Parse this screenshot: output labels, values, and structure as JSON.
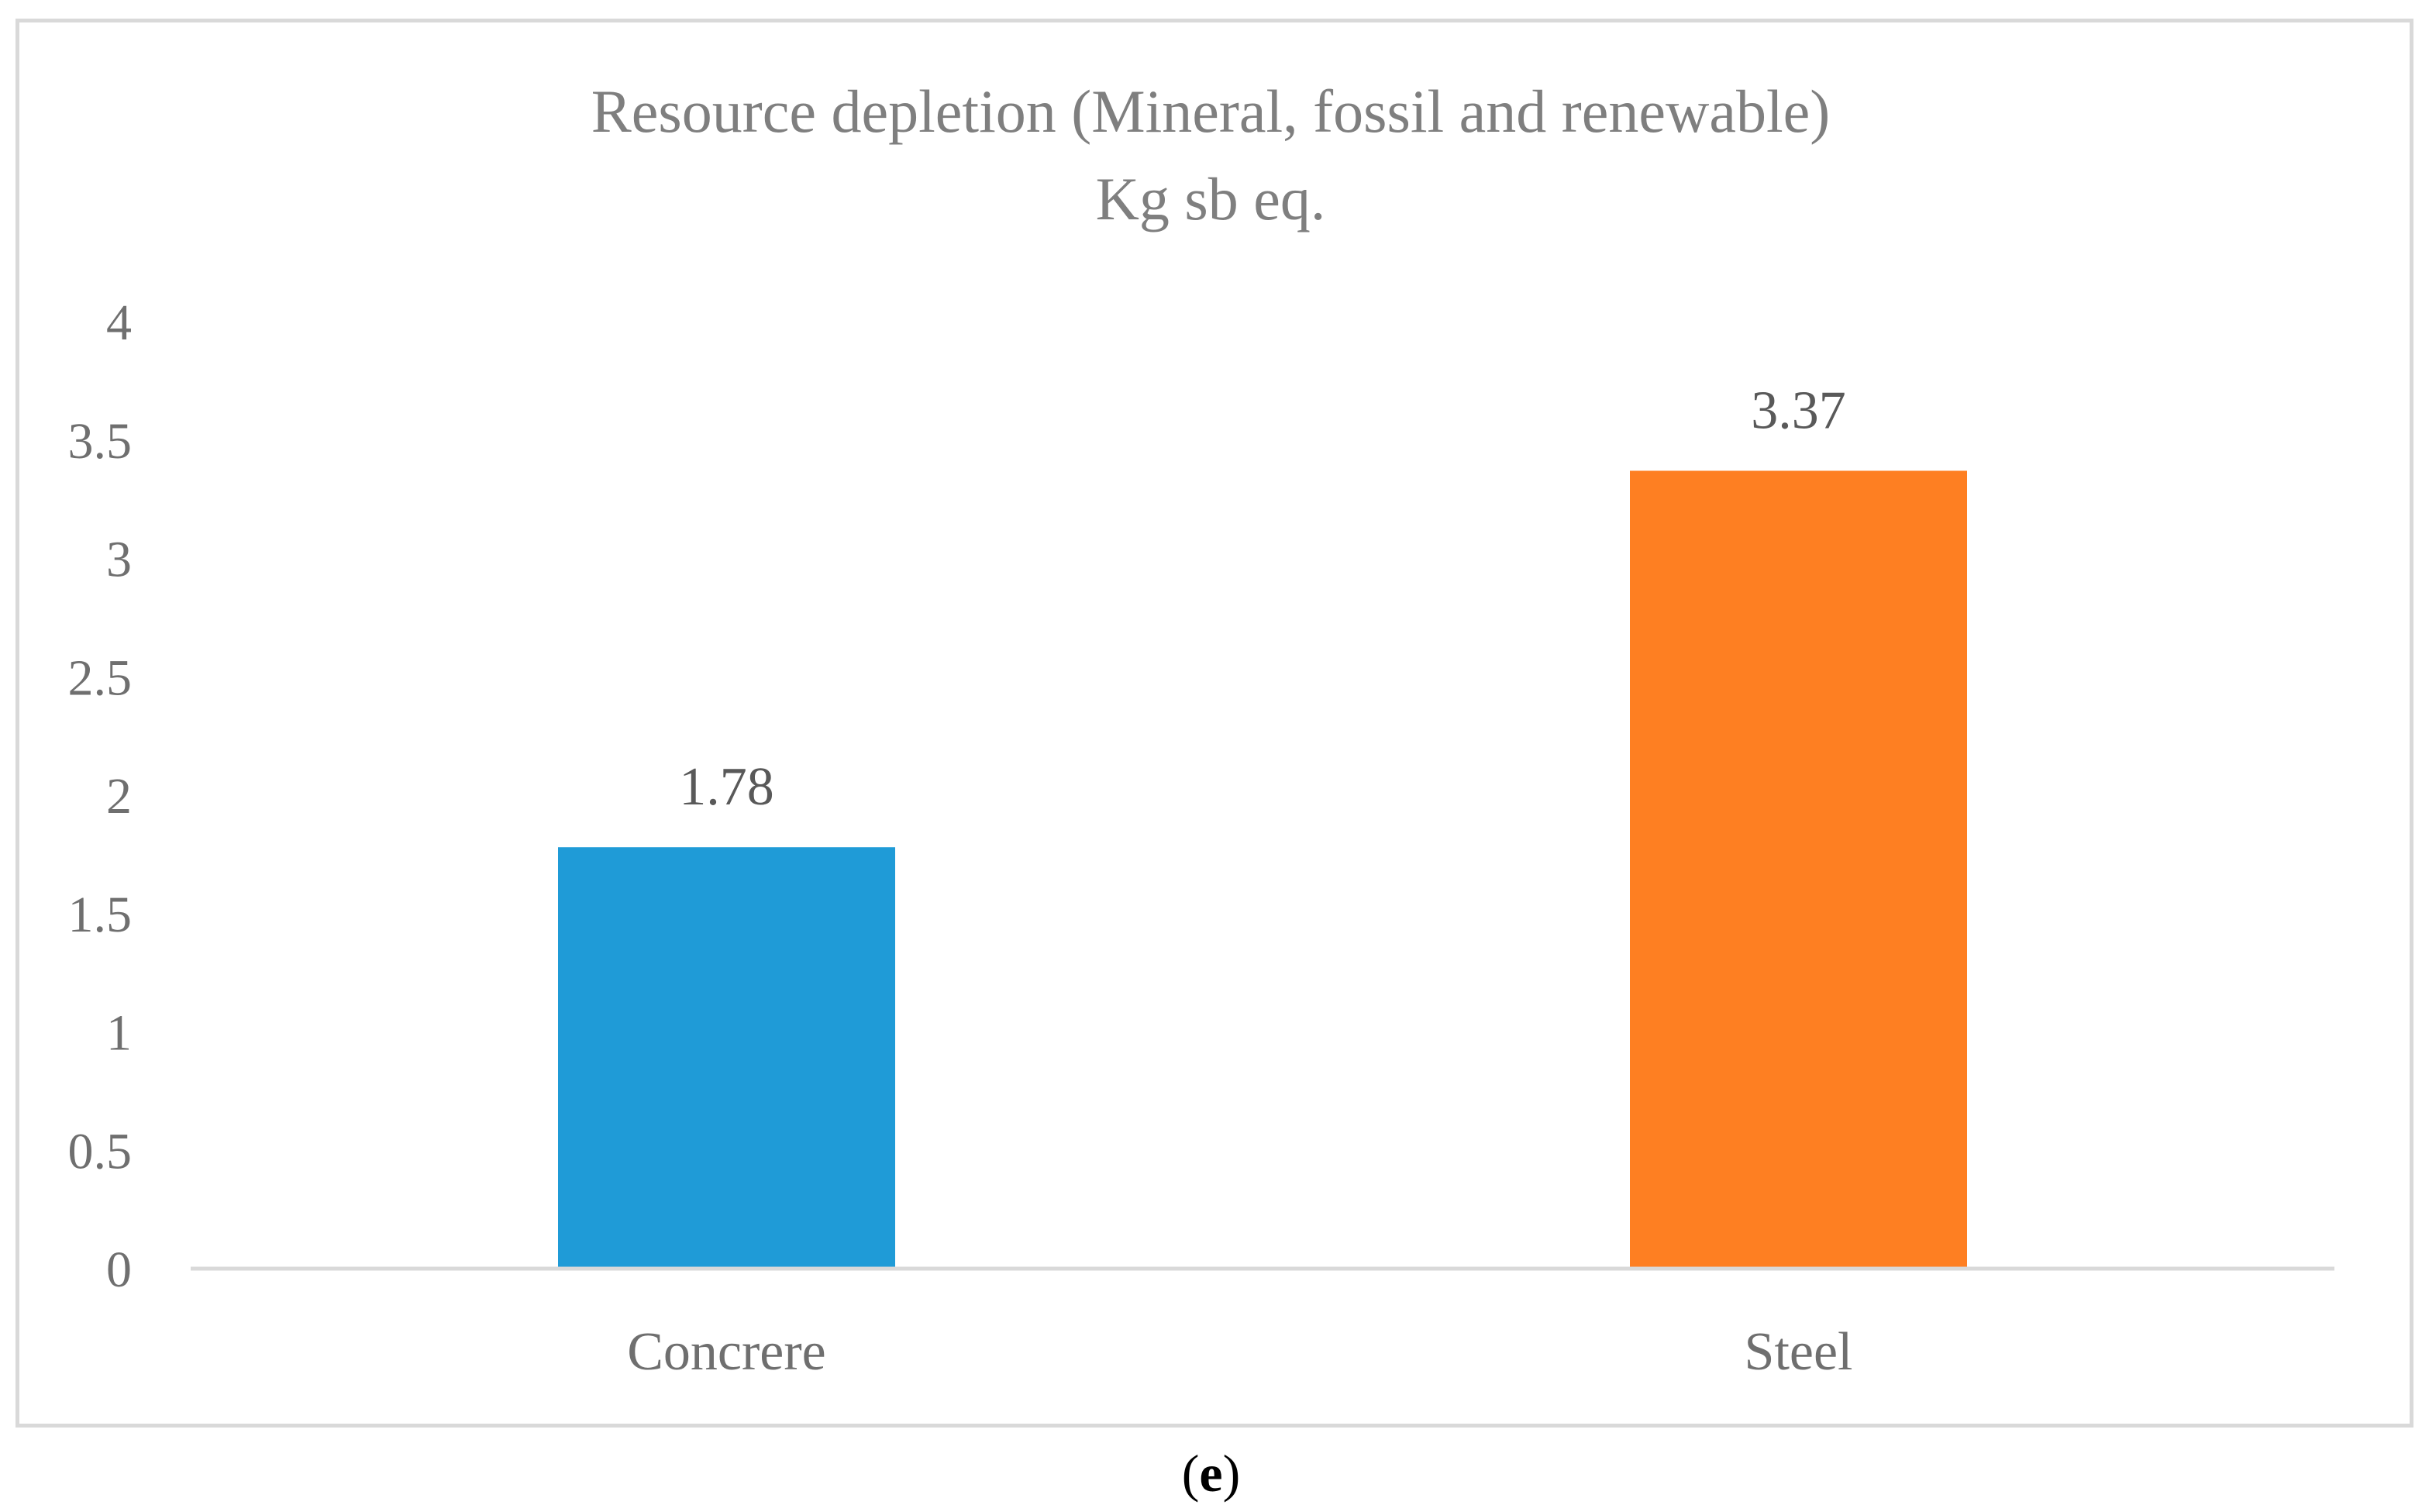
{
  "chart_data": {
    "type": "bar",
    "title": "Resource depletion (Mineral, fossil and renewable)",
    "subtitle": "Kg sb eq.",
    "categories": [
      "Concrere",
      "Steel"
    ],
    "values": [
      1.78,
      3.37
    ],
    "data_labels": [
      "1.78",
      "3.37"
    ],
    "colors": [
      "#1f9bd7",
      "#fe7f22"
    ],
    "ylim": [
      0,
      4
    ],
    "yticks": [
      "0",
      "0.5",
      "1",
      "1.5",
      "2",
      "2.5",
      "3",
      "3.5",
      "4"
    ],
    "ytick_values": [
      0,
      0.5,
      1,
      1.5,
      2,
      2.5,
      3,
      3.5,
      4
    ],
    "xlabel": "",
    "ylabel": "",
    "grid": false,
    "legend": "none"
  },
  "caption": {
    "open": "(",
    "letter": "e",
    "close": ")"
  }
}
